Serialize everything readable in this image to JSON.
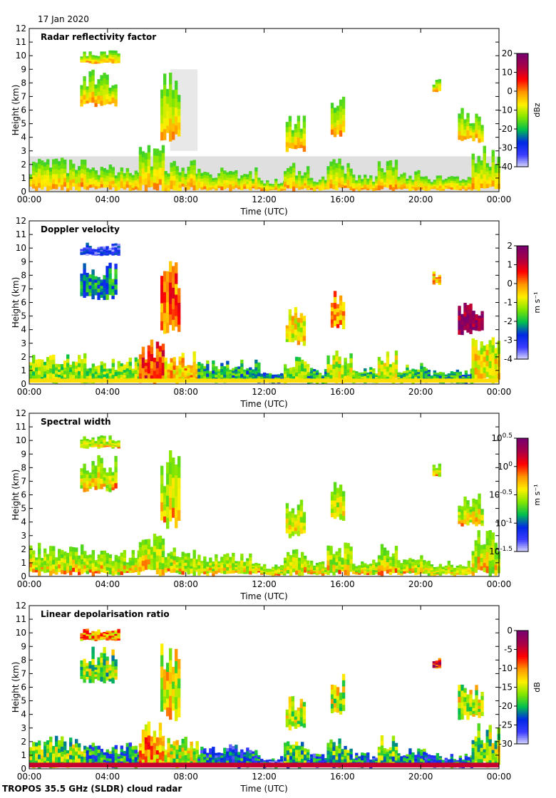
{
  "date": "17 Jan 2020",
  "footer": "TROPOS 35.5 GHz (SLDR) cloud radar",
  "colors": {
    "bg": "#ffffff",
    "clutter": "#d9d9d9",
    "axis": "#000000"
  },
  "chart_data": [
    {
      "type": "heatmap",
      "title": "Radar reflectivity factor",
      "xlabel": "Time (UTC)",
      "ylabel": "Height (km)",
      "xlim": [
        0,
        24
      ],
      "ylim": [
        0,
        12
      ],
      "x_tick_labels": [
        "00:00",
        "04:00",
        "08:00",
        "12:00",
        "16:00",
        "20:00",
        "00:00"
      ],
      "y_tick_labels": [
        "0",
        "1",
        "2",
        "3",
        "4",
        "5",
        "6",
        "7",
        "8",
        "9",
        "10",
        "11",
        "12"
      ],
      "colorbar": {
        "unit": "dBz",
        "range": [
          -40,
          20
        ],
        "tick_labels": [
          "20",
          "10",
          "0",
          "-10",
          "-20",
          "-30",
          "-40"
        ]
      }
    },
    {
      "type": "heatmap",
      "title": "Doppler velocity",
      "xlabel": "Time (UTC)",
      "ylabel": "Height (km)",
      "xlim": [
        0,
        24
      ],
      "ylim": [
        0,
        12
      ],
      "x_tick_labels": [
        "00:00",
        "04:00",
        "08:00",
        "12:00",
        "16:00",
        "20:00",
        "00:00"
      ],
      "y_tick_labels": [
        "0",
        "1",
        "2",
        "3",
        "4",
        "5",
        "6",
        "7",
        "8",
        "9",
        "10",
        "11",
        "12"
      ],
      "colorbar": {
        "unit": "m s⁻¹",
        "range": [
          -4,
          2
        ],
        "tick_labels": [
          "2",
          "1",
          "0",
          "-1",
          "-2",
          "-3",
          "-4"
        ]
      }
    },
    {
      "type": "heatmap",
      "title": "Spectral width",
      "xlabel": "Time (UTC)",
      "ylabel": "Height (km)",
      "xlim": [
        0,
        24
      ],
      "ylim": [
        0,
        12
      ],
      "x_tick_labels": [
        "00:00",
        "04:00",
        "08:00",
        "12:00",
        "16:00",
        "20:00",
        "00:00"
      ],
      "y_tick_labels": [
        "0",
        "1",
        "2",
        "3",
        "4",
        "5",
        "6",
        "7",
        "8",
        "9",
        "10",
        "11",
        "12"
      ],
      "colorbar": {
        "unit": "m s⁻¹",
        "range": [
          -1.5,
          0.5
        ],
        "scale": "log10",
        "tick_labels": [
          "10^0.5",
          "10^0",
          "10^-0.5",
          "10^-1",
          "10^-1.5"
        ]
      }
    },
    {
      "type": "heatmap",
      "title": "Linear depolarisation ratio",
      "xlabel": "Time (UTC)",
      "ylabel": "Height (km)",
      "xlim": [
        0,
        24
      ],
      "ylim": [
        0,
        12
      ],
      "x_tick_labels": [
        "00:00",
        "04:00",
        "08:00",
        "12:00",
        "16:00",
        "20:00",
        "00:00"
      ],
      "y_tick_labels": [
        "0",
        "1",
        "2",
        "3",
        "4",
        "5",
        "6",
        "7",
        "8",
        "9",
        "10",
        "11",
        "12"
      ],
      "colorbar": {
        "unit": "dB",
        "range": [
          -30,
          0
        ],
        "tick_labels": [
          "0",
          "-5",
          "-10",
          "-15",
          "-20",
          "-25",
          "-30"
        ]
      }
    }
  ],
  "clouds": [
    {
      "t0": 0.0,
      "t1": 2.9,
      "h0": 0.05,
      "h1": 2.5,
      "v": 0.45,
      "d": 0.45
    },
    {
      "t0": 2.9,
      "t1": 5.6,
      "h0": 0.05,
      "h1": 2.0,
      "v": 0.45,
      "d": 0.3
    },
    {
      "t0": 5.6,
      "t1": 6.9,
      "h0": 0.05,
      "h1": 3.5,
      "v": 0.75,
      "d": 0.65
    },
    {
      "t0": 6.9,
      "t1": 8.6,
      "h0": 0.05,
      "h1": 2.5,
      "v": 0.6,
      "d": 0.5
    },
    {
      "t0": 8.6,
      "t1": 11.8,
      "h0": 0.05,
      "h1": 1.8,
      "v": 0.35,
      "d": 0.25
    },
    {
      "t0": 11.8,
      "t1": 13.0,
      "h0": 0.05,
      "h1": 1.0,
      "v": 0.3,
      "d": 0.2
    },
    {
      "t0": 13.0,
      "t1": 14.2,
      "h0": 0.05,
      "h1": 2.2,
      "v": 0.45,
      "d": 0.4
    },
    {
      "t0": 14.2,
      "t1": 15.2,
      "h0": 0.05,
      "h1": 1.2,
      "v": 0.35,
      "d": 0.25
    },
    {
      "t0": 15.2,
      "t1": 16.5,
      "h0": 0.05,
      "h1": 2.5,
      "v": 0.5,
      "d": 0.4
    },
    {
      "t0": 16.5,
      "t1": 17.8,
      "h0": 0.05,
      "h1": 1.3,
      "v": 0.4,
      "d": 0.25
    },
    {
      "t0": 17.8,
      "t1": 18.8,
      "h0": 0.05,
      "h1": 2.8,
      "v": 0.5,
      "d": 0.4
    },
    {
      "t0": 18.8,
      "t1": 20.2,
      "h0": 0.05,
      "h1": 1.6,
      "v": 0.4,
      "d": 0.3
    },
    {
      "t0": 20.2,
      "t1": 22.6,
      "h0": 0.05,
      "h1": 1.2,
      "v": 0.35,
      "d": 0.25
    },
    {
      "t0": 22.6,
      "t1": 24.0,
      "h0": 0.05,
      "h1": 3.5,
      "v": 0.55,
      "d": 0.45
    },
    {
      "t0": 2.6,
      "t1": 4.4,
      "h0": 6.2,
      "h1": 9.0,
      "v": 0.3,
      "d": 0.45
    },
    {
      "t0": 2.6,
      "t1": 4.6,
      "h0": 9.4,
      "h1": 10.4,
      "v": 0.15,
      "d": 0.65
    },
    {
      "t0": 6.7,
      "t1": 7.6,
      "h0": 3.5,
      "h1": 9.3,
      "v": 0.7,
      "d": 0.55
    },
    {
      "t0": 13.1,
      "t1": 14.0,
      "h0": 2.8,
      "h1": 5.8,
      "v": 0.55,
      "d": 0.5
    },
    {
      "t0": 15.4,
      "t1": 16.0,
      "h0": 4.0,
      "h1": 7.0,
      "v": 0.65,
      "d": 0.5
    },
    {
      "t0": 20.6,
      "t1": 20.9,
      "h0": 7.3,
      "h1": 8.3,
      "v": 0.6,
      "d": 0.8
    },
    {
      "t0": 21.9,
      "t1": 23.1,
      "h0": 3.6,
      "h1": 6.2,
      "v": 0.95,
      "d": 0.5
    }
  ]
}
